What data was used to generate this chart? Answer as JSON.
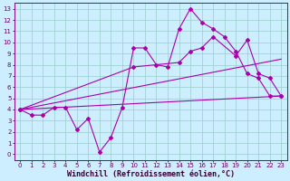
{
  "line1_x": [
    0,
    1,
    2,
    3,
    4,
    5,
    6,
    7,
    8,
    9,
    10,
    11,
    12,
    13,
    14,
    15,
    16,
    17,
    18,
    19,
    20,
    21,
    22,
    23
  ],
  "line1_y": [
    4.0,
    3.5,
    3.5,
    4.2,
    4.2,
    2.2,
    3.2,
    0.2,
    1.5,
    4.2,
    9.5,
    9.5,
    8.0,
    7.8,
    11.2,
    13.0,
    11.8,
    11.2,
    10.5,
    9.2,
    7.2,
    6.8,
    5.2,
    5.2
  ],
  "line2_x": [
    0,
    23
  ],
  "line2_y": [
    4.0,
    5.2
  ],
  "line3_x": [
    0,
    23
  ],
  "line3_y": [
    4.0,
    8.5
  ],
  "line4_x": [
    0,
    10,
    14,
    15,
    16,
    17,
    19,
    20,
    21,
    22,
    23
  ],
  "line4_y": [
    4.0,
    7.8,
    8.2,
    9.2,
    9.5,
    10.5,
    8.8,
    10.2,
    7.2,
    6.8,
    5.2
  ],
  "line_color": "#aa00aa",
  "bg_color": "#cceeff",
  "grid_color": "#99cccc",
  "xlabel": "Windchill (Refroidissement éolien,°C)",
  "xlim": [
    -0.5,
    23.5
  ],
  "ylim": [
    -0.5,
    13.5
  ],
  "xticks": [
    0,
    1,
    2,
    3,
    4,
    5,
    6,
    7,
    8,
    9,
    10,
    11,
    12,
    13,
    14,
    15,
    16,
    17,
    18,
    19,
    20,
    21,
    22,
    23
  ],
  "yticks": [
    0,
    1,
    2,
    3,
    4,
    5,
    6,
    7,
    8,
    9,
    10,
    11,
    12,
    13
  ],
  "tick_fontsize": 5.0,
  "xlabel_fontsize": 6.0,
  "marker": "D",
  "marker_size": 2.0,
  "line_width": 0.8
}
